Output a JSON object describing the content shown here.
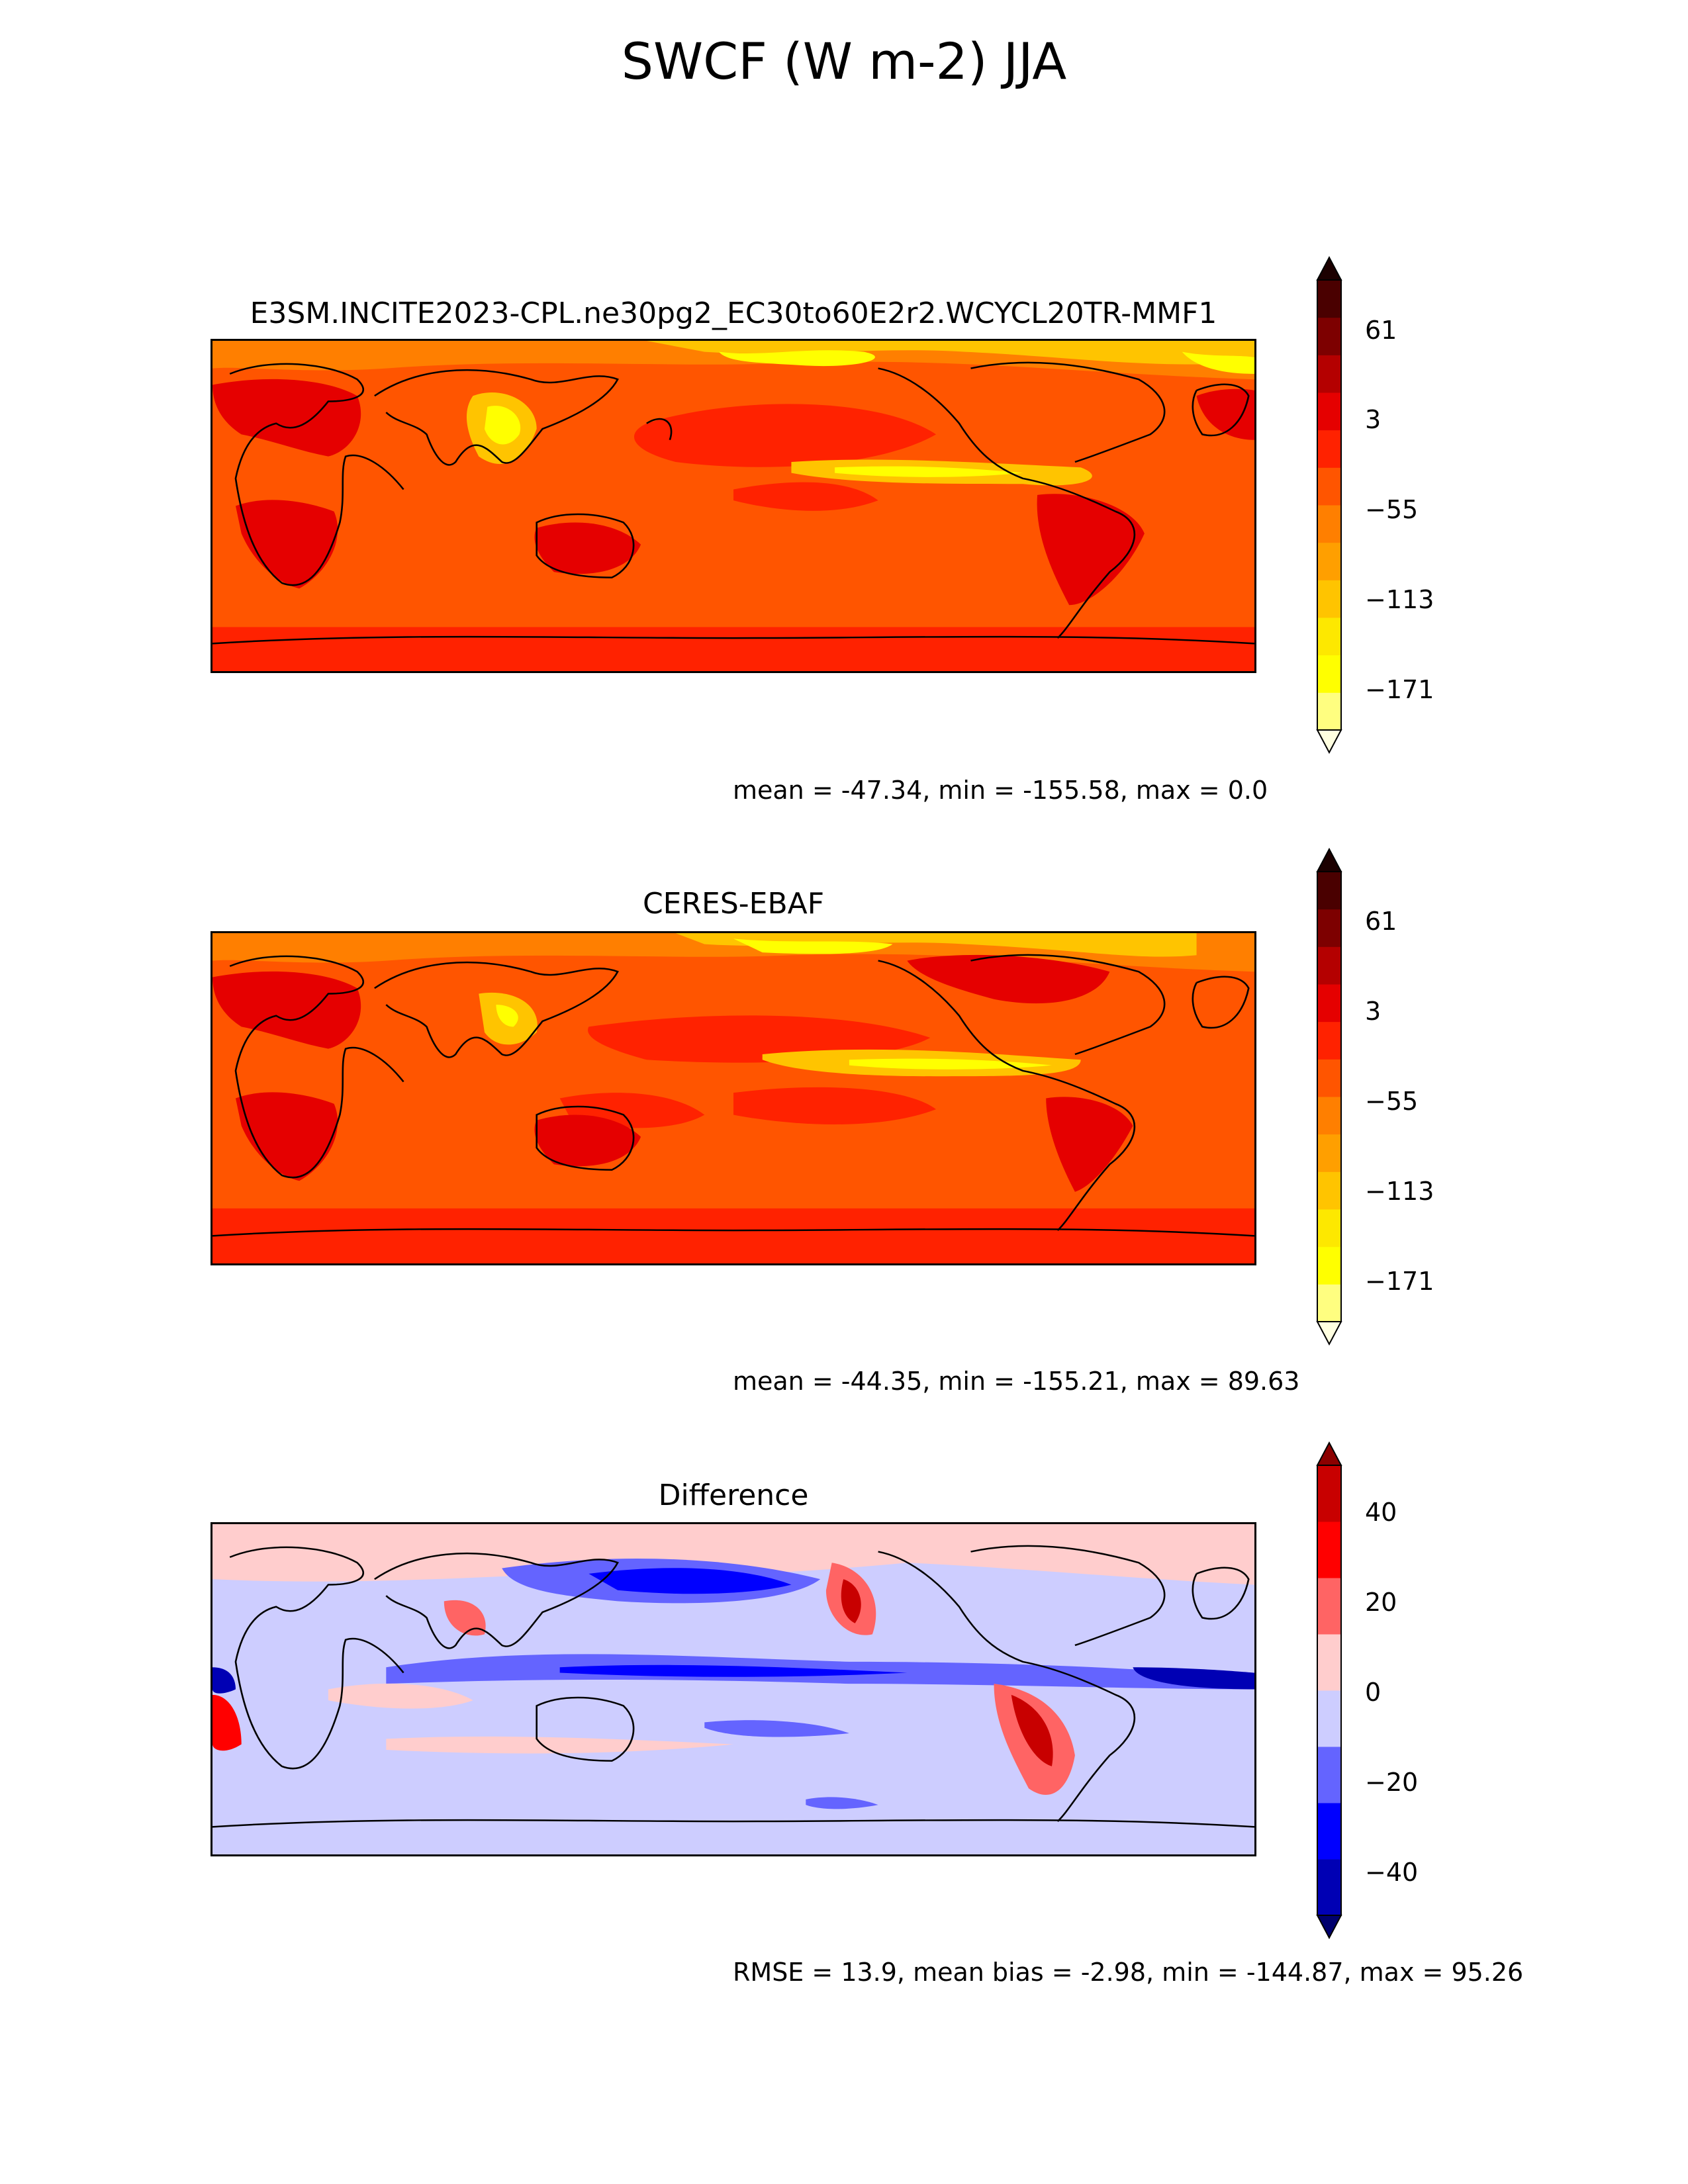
{
  "figure_title": "SWCF (W m-2) JJA",
  "chart_data": [
    {
      "type": "heatmap",
      "title": "E3SM.INCITE2023-CPL.ne30pg2_EC30to60E2r2.WCYCL20TR-MMF1",
      "stats_text": "mean = -47.34, min = -155.58, max = 0.0",
      "stats": {
        "mean": -47.34,
        "min": -155.58,
        "max": 0.0
      },
      "colorbar": {
        "ticks": [
          "61",
          "3",
          "−55",
          "−113",
          "−171"
        ],
        "tick_values": [
          61,
          3,
          -55,
          -113,
          -171
        ],
        "colors": [
          "#ffffe0",
          "#fffe80",
          "#ffff00",
          "#fde800",
          "#ffc400",
          "#ff9f00",
          "#ff7f00",
          "#ff5500",
          "#ff2200",
          "#e50000",
          "#b40000",
          "#7d0000",
          "#4a0000",
          "#1c0000"
        ],
        "extend": "both"
      },
      "grid": false
    },
    {
      "type": "heatmap",
      "title": "CERES-EBAF",
      "stats_text": "mean = -44.35, min = -155.21, max = 89.63",
      "stats": {
        "mean": -44.35,
        "min": -155.21,
        "max": 89.63
      },
      "colorbar": {
        "ticks": [
          "61",
          "3",
          "−55",
          "−113",
          "−171"
        ],
        "tick_values": [
          61,
          3,
          -55,
          -113,
          -171
        ],
        "colors": [
          "#ffffe0",
          "#fffe80",
          "#ffff00",
          "#fde800",
          "#ffc400",
          "#ff9f00",
          "#ff7f00",
          "#ff5500",
          "#ff2200",
          "#e50000",
          "#b40000",
          "#7d0000",
          "#4a0000",
          "#1c0000"
        ],
        "extend": "both"
      },
      "grid": false
    },
    {
      "type": "heatmap",
      "title": "Difference",
      "stats_text": "RMSE = 13.9, mean bias = -2.98, min = -144.87, max = 95.26",
      "stats": {
        "rmse": 13.9,
        "mean_bias": -2.98,
        "min": -144.87,
        "max": 95.26
      },
      "colorbar": {
        "ticks": [
          "40",
          "20",
          "0",
          "−20",
          "−40"
        ],
        "tick_values": [
          40,
          20,
          0,
          -20,
          -40
        ],
        "colors": [
          "#00006e",
          "#0000b4",
          "#0000ff",
          "#6464ff",
          "#cdcdff",
          "#ffcdcd",
          "#ff6464",
          "#ff0000",
          "#c80000",
          "#8c0000"
        ],
        "extend": "both"
      },
      "grid": false
    }
  ]
}
